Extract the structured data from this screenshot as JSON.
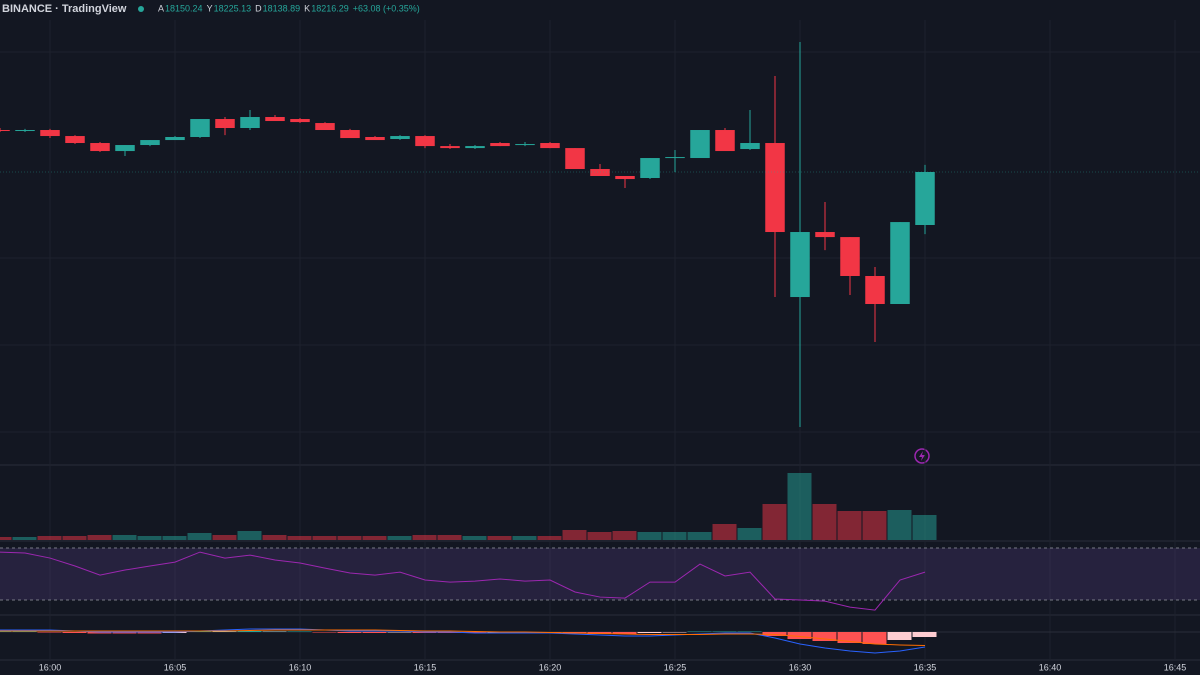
{
  "header": {
    "source": "BINANCE · TradingView",
    "ohlc": [
      {
        "key": "A",
        "value": "18150.24"
      },
      {
        "key": "Y",
        "value": "18225.13"
      },
      {
        "key": "D",
        "value": "18138.89"
      },
      {
        "key": "K",
        "value": "18216.29"
      }
    ],
    "change": "+63.08 (+0.35%)"
  },
  "chart_data": {
    "type": "candlestick",
    "categories": [
      "15:58",
      "15:59",
      "16:00",
      "16:01",
      "16:02",
      "16:03",
      "16:04",
      "16:05",
      "16:06",
      "16:07",
      "16:08",
      "16:09",
      "16:10",
      "16:11",
      "16:12",
      "16:13",
      "16:14",
      "16:15",
      "16:16",
      "16:17",
      "16:18",
      "16:19",
      "16:20",
      "16:21",
      "16:22",
      "16:23",
      "16:24",
      "16:25",
      "16:26",
      "16:27",
      "16:28",
      "16:29",
      "16:30",
      "16:31",
      "16:32",
      "16:33",
      "16:34",
      "16:35"
    ],
    "open": [
      18268.6,
      18267.4,
      18268.6,
      18261.1,
      18252.4,
      18242.4,
      18249.9,
      18256.1,
      18259.9,
      18282.3,
      18271.1,
      18284.8,
      18282.3,
      18277.3,
      18268.6,
      18259.9,
      18257.4,
      18261.1,
      18248.6,
      18246.1,
      18252.4,
      18250.0,
      18252.4,
      18246.1,
      18220.0,
      18211.3,
      18208.8,
      18233.7,
      18233.7,
      18268.6,
      18244.9,
      18252.4,
      18060.5,
      18141.5,
      18135.2,
      18086.7,
      18051.8,
      18150.24
    ],
    "high": [
      18271.1,
      18270.0,
      18270.0,
      18262.3,
      18253.6,
      18249.9,
      18256.1,
      18261.1,
      18282.3,
      18284.8,
      18293.5,
      18287.3,
      18283.5,
      18278.5,
      18270.0,
      18261.1,
      18262.3,
      18262.3,
      18251.1,
      18249.9,
      18253.6,
      18253.6,
      18253.6,
      18246.1,
      18226.2,
      18211.3,
      18233.7,
      18243.7,
      18268.6,
      18271.1,
      18293.5,
      18335.9,
      18378.2,
      18178.9,
      18135.2,
      18097.9,
      18153.9,
      18225.13
    ],
    "low": [
      18266.1,
      18266.1,
      18258.6,
      18251.1,
      18241.2,
      18236.2,
      18248.6,
      18256.1,
      18258.6,
      18262.3,
      18268.6,
      18279.8,
      18277.3,
      18268.6,
      18258.6,
      18256.1,
      18256.1,
      18246.1,
      18245.0,
      18245.0,
      18248.6,
      18248.6,
      18246.1,
      18220.0,
      18211.3,
      18196.3,
      18207.5,
      18216.2,
      18233.7,
      18242.4,
      18243.7,
      18060.5,
      17898.5,
      18119.0,
      18063.0,
      18004.4,
      18051.8,
      18138.89
    ],
    "close": [
      18267.4,
      18268.6,
      18261.1,
      18252.4,
      18242.4,
      18249.9,
      18256.1,
      18259.9,
      18282.3,
      18271.1,
      18284.8,
      18279.8,
      18278.5,
      18268.6,
      18258.6,
      18256.1,
      18261.1,
      18248.6,
      18246.1,
      18248.6,
      18248.6,
      18251.1,
      18246.1,
      18220.0,
      18211.3,
      18207.5,
      18233.7,
      18234.9,
      18268.6,
      18242.4,
      18252.4,
      18141.5,
      18141.5,
      18135.2,
      18086.7,
      18051.8,
      18153.9,
      18216.29
    ],
    "up_color": "#26a69a",
    "down_color": "#f23645",
    "xlim": [
      "15:58",
      "16:46"
    ],
    "ylim": [
      17851.2,
      18430.6
    ],
    "xticks": [
      "16:00",
      "16:05",
      "16:10",
      "16:15",
      "16:20",
      "16:25",
      "16:30",
      "16:35",
      "16:40",
      "16:45"
    ],
    "volume": [
      3,
      3,
      4,
      4,
      5,
      5,
      4,
      4,
      7,
      5,
      9,
      5,
      4,
      4,
      4,
      4,
      4,
      5,
      5,
      4,
      4,
      4,
      4,
      10,
      8,
      9,
      8,
      8,
      8,
      16,
      12,
      36,
      67,
      36,
      29,
      29,
      30,
      25
    ],
    "volume_ylim": [
      0,
      70
    ],
    "rsi": [
      66.9,
      66.2,
      62.3,
      56.2,
      49.2,
      53.1,
      56.2,
      59.2,
      66.9,
      62.3,
      64.6,
      60.8,
      58.5,
      54.6,
      50.8,
      49.2,
      51.5,
      45.4,
      43.8,
      44.6,
      46.2,
      44.6,
      45.4,
      36.2,
      32.3,
      31.5,
      43.8,
      43.8,
      57.7,
      48.5,
      51.5,
      30.8,
      30.0,
      29.2,
      24.6,
      22.3,
      45.4,
      51.5
    ],
    "rsi_color": "#9c27b0",
    "rsi_bands": [
      30,
      70
    ],
    "rsi_ylim": [
      18.5,
      76.2
    ],
    "macd_hist": [
      0.5,
      0.5,
      -0.5,
      -1,
      -1.5,
      -1.5,
      -1.5,
      -1,
      1,
      0.5,
      1,
      0.5,
      0.5,
      -0.5,
      -1,
      -1,
      -0.5,
      -1,
      -1,
      -1,
      -0.5,
      -0.5,
      -0.5,
      -1.5,
      -2,
      -2,
      -1,
      -0.5,
      0.5,
      0.5,
      0.5,
      -4,
      -7,
      -9,
      -11,
      -12,
      -8,
      -5
    ],
    "macd": [
      2,
      2,
      2,
      1,
      0,
      0,
      0,
      0,
      1,
      2,
      3,
      3,
      3,
      2,
      1,
      1,
      1,
      0,
      0,
      -1,
      -1,
      -1,
      -1,
      -2,
      -3,
      -4,
      -4,
      -3,
      -2,
      -1,
      -1,
      -6,
      -12,
      -16,
      -19,
      -21,
      -19,
      -15
    ],
    "signal": [
      1,
      1,
      1,
      1,
      1,
      1,
      1,
      1,
      1,
      1,
      1.5,
      2,
      2,
      2,
      2,
      2,
      1.5,
      1,
      1,
      0.5,
      0,
      0,
      -0.5,
      -1,
      -1.5,
      -2,
      -2.5,
      -2.5,
      -2.5,
      -2,
      -2,
      -2.5,
      -4.5,
      -7,
      -9.5,
      -12,
      -13,
      -13.5
    ],
    "macd_color": "#2962ff",
    "signal_color": "#ff6d00",
    "macd_ylim": [
      -28,
      17
    ]
  }
}
